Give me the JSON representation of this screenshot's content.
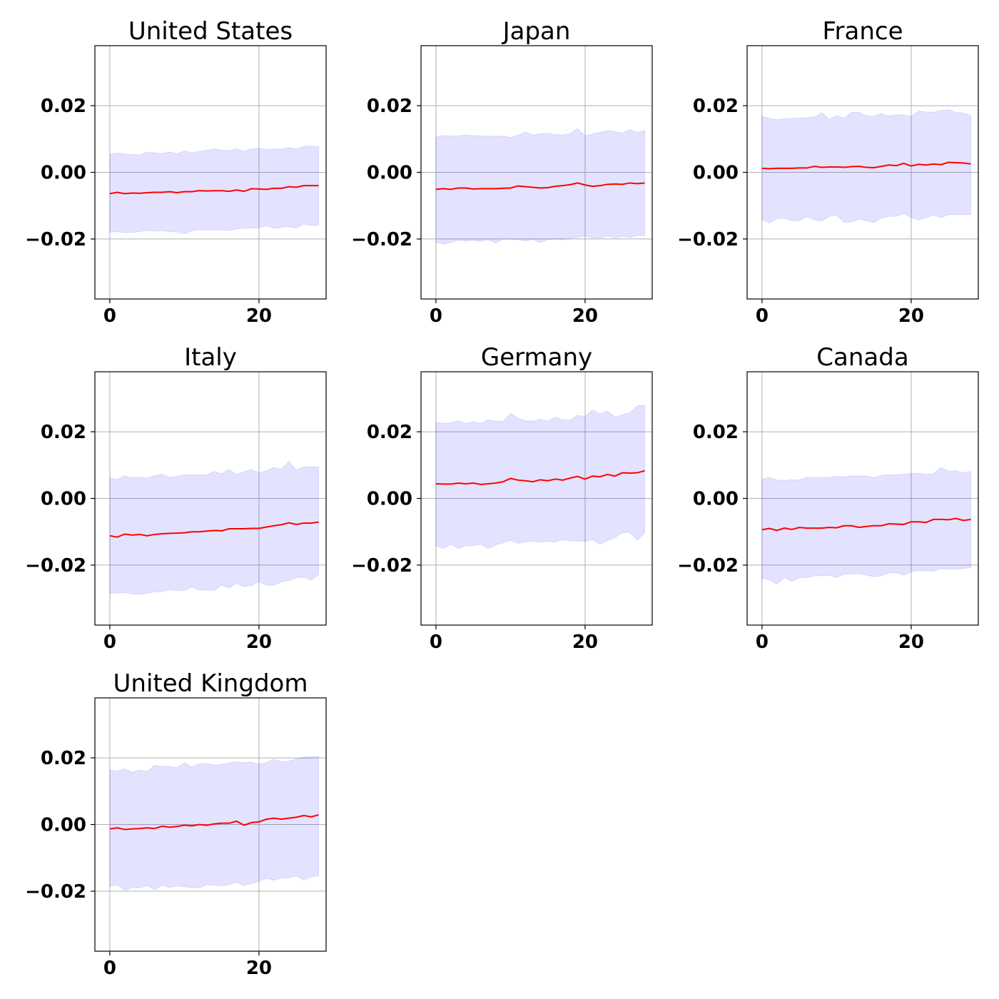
{
  "colors": {
    "mean_line": "#ff0000",
    "band_fill": "#0000ff",
    "band_fill_opacity": 0.11,
    "grid": "#b0b0b0",
    "axes": "#000000"
  },
  "chart_data": [
    {
      "type": "line",
      "title": "United States",
      "xlabel": "",
      "ylabel": "",
      "xlim": [
        -2.0,
        29.0
      ],
      "ylim": [
        -0.038,
        0.038
      ],
      "x_ticks": [
        0,
        20
      ],
      "x_tick_labels": [
        "0",
        "20"
      ],
      "y_ticks": [
        0.02,
        0.0,
        -0.02
      ],
      "y_tick_labels": [
        "0.02",
        "0.00",
        "−0.02"
      ],
      "grid": true,
      "x": [
        0,
        1,
        2,
        3,
        4,
        5,
        6,
        7,
        8,
        9,
        10,
        11,
        12,
        13,
        14,
        15,
        16,
        17,
        18,
        19,
        20,
        21,
        22,
        23,
        24,
        25,
        26,
        27,
        28
      ],
      "series": [
        {
          "values": [
            -0.0064,
            -0.006,
            -0.0064,
            -0.0062,
            -0.0063,
            -0.0061,
            -0.006,
            -0.006,
            -0.0058,
            -0.0061,
            -0.0058,
            -0.0058,
            -0.0055,
            -0.0056,
            -0.0055,
            -0.0055,
            -0.0057,
            -0.0053,
            -0.0057,
            -0.0049,
            -0.005,
            -0.0051,
            -0.0048,
            -0.0048,
            -0.0043,
            -0.0045,
            -0.004,
            -0.004,
            -0.004
          ],
          "lower": [
            -0.018,
            -0.0178,
            -0.0181,
            -0.018,
            -0.0178,
            -0.0174,
            -0.0176,
            -0.0175,
            -0.0178,
            -0.0179,
            -0.0184,
            -0.0175,
            -0.0172,
            -0.0174,
            -0.0173,
            -0.0172,
            -0.0175,
            -0.017,
            -0.0168,
            -0.0167,
            -0.0166,
            -0.016,
            -0.0168,
            -0.0165,
            -0.0163,
            -0.0167,
            -0.0155,
            -0.016,
            -0.0158
          ],
          "upper": [
            0.0054,
            0.0058,
            0.0055,
            0.0054,
            0.0052,
            0.006,
            0.0059,
            0.0056,
            0.0061,
            0.0056,
            0.0064,
            0.0059,
            0.0063,
            0.0066,
            0.007,
            0.0066,
            0.0065,
            0.007,
            0.0063,
            0.0071,
            0.0072,
            0.0068,
            0.0071,
            0.0069,
            0.0074,
            0.007,
            0.0077,
            0.0079,
            0.0077
          ]
        }
      ]
    },
    {
      "type": "line",
      "title": "Japan",
      "xlabel": "",
      "ylabel": "",
      "xlim": [
        -2.0,
        29.0
      ],
      "ylim": [
        -0.038,
        0.038
      ],
      "x_ticks": [
        0,
        20
      ],
      "x_tick_labels": [
        "0",
        "20"
      ],
      "y_ticks": [
        0.02,
        0.0,
        -0.02
      ],
      "y_tick_labels": [
        "0.02",
        "0.00",
        "−0.02"
      ],
      "grid": true,
      "x": [
        0,
        1,
        2,
        3,
        4,
        5,
        6,
        7,
        8,
        9,
        10,
        11,
        12,
        13,
        14,
        15,
        16,
        17,
        18,
        19,
        20,
        21,
        22,
        23,
        24,
        25,
        26,
        27,
        28
      ],
      "series": [
        {
          "values": [
            -0.0051,
            -0.0049,
            -0.0051,
            -0.0047,
            -0.0047,
            -0.005,
            -0.0049,
            -0.0049,
            -0.0049,
            -0.0048,
            -0.0047,
            -0.0041,
            -0.0043,
            -0.0045,
            -0.0047,
            -0.0046,
            -0.0042,
            -0.004,
            -0.0037,
            -0.0032,
            -0.0038,
            -0.0042,
            -0.004,
            -0.0036,
            -0.0035,
            -0.0036,
            -0.0032,
            -0.0034,
            -0.0032
          ],
          "lower": [
            -0.021,
            -0.0215,
            -0.0211,
            -0.0203,
            -0.0206,
            -0.0204,
            -0.0207,
            -0.0202,
            -0.0212,
            -0.02,
            -0.0201,
            -0.0202,
            -0.0206,
            -0.0201,
            -0.0211,
            -0.0202,
            -0.02,
            -0.0202,
            -0.0198,
            -0.0195,
            -0.0191,
            -0.0197,
            -0.0197,
            -0.0191,
            -0.0197,
            -0.0192,
            -0.0196,
            -0.0189,
            -0.019
          ],
          "upper": [
            0.0105,
            0.011,
            0.0109,
            0.0109,
            0.0112,
            0.011,
            0.0109,
            0.0109,
            0.0108,
            0.0109,
            0.0105,
            0.0111,
            0.0121,
            0.0112,
            0.0115,
            0.0117,
            0.0113,
            0.0112,
            0.0116,
            0.0131,
            0.0109,
            0.0115,
            0.012,
            0.0125,
            0.0122,
            0.0118,
            0.0128,
            0.012,
            0.0126
          ]
        }
      ]
    },
    {
      "type": "line",
      "title": "France",
      "xlabel": "",
      "ylabel": "",
      "xlim": [
        -2.0,
        29.0
      ],
      "ylim": [
        -0.038,
        0.038
      ],
      "x_ticks": [
        0,
        20
      ],
      "x_tick_labels": [
        "0",
        "20"
      ],
      "y_ticks": [
        0.02,
        0.0,
        -0.02
      ],
      "y_tick_labels": [
        "0.02",
        "0.00",
        "−0.02"
      ],
      "grid": true,
      "x": [
        0,
        1,
        2,
        3,
        4,
        5,
        6,
        7,
        8,
        9,
        10,
        11,
        12,
        13,
        14,
        15,
        16,
        17,
        18,
        19,
        20,
        21,
        22,
        23,
        24,
        25,
        26,
        27,
        28
      ],
      "series": [
        {
          "values": [
            0.0012,
            0.0011,
            0.0012,
            0.0012,
            0.0012,
            0.0013,
            0.0013,
            0.0018,
            0.0015,
            0.0016,
            0.0016,
            0.0015,
            0.0017,
            0.0018,
            0.0015,
            0.0014,
            0.0018,
            0.0022,
            0.002,
            0.0027,
            0.0019,
            0.0024,
            0.0022,
            0.0025,
            0.0023,
            0.003,
            0.0029,
            0.0028,
            0.0025
          ],
          "lower": [
            -0.0142,
            -0.0152,
            -0.0139,
            -0.0137,
            -0.0145,
            -0.0145,
            -0.0133,
            -0.0142,
            -0.0146,
            -0.0132,
            -0.0128,
            -0.015,
            -0.0149,
            -0.014,
            -0.0145,
            -0.0151,
            -0.0137,
            -0.0132,
            -0.0132,
            -0.0124,
            -0.0136,
            -0.0143,
            -0.0136,
            -0.0128,
            -0.0136,
            -0.0127,
            -0.0127,
            -0.0127,
            -0.0126
          ],
          "upper": [
            0.0168,
            0.0162,
            0.0158,
            0.016,
            0.0162,
            0.0163,
            0.0164,
            0.0166,
            0.0179,
            0.0159,
            0.017,
            0.0162,
            0.018,
            0.018,
            0.0169,
            0.0168,
            0.0177,
            0.0169,
            0.0173,
            0.0172,
            0.0167,
            0.0184,
            0.0181,
            0.018,
            0.0186,
            0.0187,
            0.018,
            0.0178,
            0.017
          ]
        }
      ]
    },
    {
      "type": "line",
      "title": "Italy",
      "xlabel": "",
      "ylabel": "",
      "xlim": [
        -2.0,
        29.0
      ],
      "ylim": [
        -0.038,
        0.038
      ],
      "x_ticks": [
        0,
        20
      ],
      "x_tick_labels": [
        "0",
        "20"
      ],
      "y_ticks": [
        0.02,
        0.0,
        -0.02
      ],
      "y_tick_labels": [
        "0.02",
        "0.00",
        "−0.02"
      ],
      "grid": true,
      "x": [
        0,
        1,
        2,
        3,
        4,
        5,
        6,
        7,
        8,
        9,
        10,
        11,
        12,
        13,
        14,
        15,
        16,
        17,
        18,
        19,
        20,
        21,
        22,
        23,
        24,
        25,
        26,
        27,
        28
      ],
      "series": [
        {
          "values": [
            -0.0112,
            -0.0116,
            -0.0107,
            -0.011,
            -0.0108,
            -0.0112,
            -0.0108,
            -0.0106,
            -0.0105,
            -0.0104,
            -0.0103,
            -0.01,
            -0.01,
            -0.0098,
            -0.0096,
            -0.0097,
            -0.0091,
            -0.0091,
            -0.0091,
            -0.009,
            -0.009,
            -0.0086,
            -0.0082,
            -0.0079,
            -0.0073,
            -0.0078,
            -0.0074,
            -0.0074,
            -0.0071
          ],
          "lower": [
            -0.0285,
            -0.0284,
            -0.0282,
            -0.0287,
            -0.0288,
            -0.0285,
            -0.028,
            -0.0279,
            -0.0273,
            -0.0276,
            -0.0276,
            -0.0266,
            -0.0275,
            -0.0275,
            -0.0276,
            -0.026,
            -0.0269,
            -0.0255,
            -0.0264,
            -0.0261,
            -0.025,
            -0.026,
            -0.026,
            -0.025,
            -0.0246,
            -0.0238,
            -0.0236,
            -0.0245,
            -0.0228
          ],
          "upper": [
            0.0062,
            0.0057,
            0.0067,
            0.0062,
            0.0064,
            0.0061,
            0.0068,
            0.0073,
            0.0063,
            0.0066,
            0.0071,
            0.0071,
            0.007,
            0.0071,
            0.0081,
            0.0074,
            0.0087,
            0.0072,
            0.008,
            0.0087,
            0.0077,
            0.0083,
            0.0093,
            0.0087,
            0.0111,
            0.0085,
            0.0095,
            0.0095,
            0.0094
          ]
        }
      ]
    },
    {
      "type": "line",
      "title": "Germany",
      "xlabel": "",
      "ylabel": "",
      "xlim": [
        -2.0,
        29.0
      ],
      "ylim": [
        -0.038,
        0.038
      ],
      "x_ticks": [
        0,
        20
      ],
      "x_tick_labels": [
        "0",
        "20"
      ],
      "y_ticks": [
        0.02,
        0.0,
        -0.02
      ],
      "y_tick_labels": [
        "0.02",
        "0.00",
        "−0.02"
      ],
      "grid": true,
      "x": [
        0,
        1,
        2,
        3,
        4,
        5,
        6,
        7,
        8,
        9,
        10,
        11,
        12,
        13,
        14,
        15,
        16,
        17,
        18,
        19,
        20,
        21,
        22,
        23,
        24,
        25,
        26,
        27,
        28
      ],
      "series": [
        {
          "values": [
            0.0044,
            0.0043,
            0.0043,
            0.0046,
            0.0044,
            0.0046,
            0.0042,
            0.0044,
            0.0046,
            0.005,
            0.006,
            0.0055,
            0.0053,
            0.005,
            0.0056,
            0.0053,
            0.0058,
            0.0055,
            0.0061,
            0.0066,
            0.0058,
            0.0067,
            0.0065,
            0.0072,
            0.0067,
            0.0077,
            0.0076,
            0.0077,
            0.0083
          ],
          "lower": [
            -0.0142,
            -0.015,
            -0.0137,
            -0.015,
            -0.0142,
            -0.0142,
            -0.0137,
            -0.015,
            -0.014,
            -0.0133,
            -0.0125,
            -0.0135,
            -0.013,
            -0.0128,
            -0.0131,
            -0.0129,
            -0.0131,
            -0.0124,
            -0.0127,
            -0.0128,
            -0.0129,
            -0.0123,
            -0.0138,
            -0.0126,
            -0.0117,
            -0.0103,
            -0.0102,
            -0.0125,
            -0.0103
          ],
          "upper": [
            0.0228,
            0.0225,
            0.0226,
            0.0233,
            0.0224,
            0.0231,
            0.0225,
            0.0236,
            0.0232,
            0.0231,
            0.0255,
            0.0241,
            0.0233,
            0.0232,
            0.0238,
            0.0232,
            0.0244,
            0.0236,
            0.0236,
            0.0249,
            0.0246,
            0.0265,
            0.0254,
            0.0262,
            0.0244,
            0.0251,
            0.0257,
            0.0278,
            0.0279
          ]
        }
      ]
    },
    {
      "type": "line",
      "title": "Canada",
      "xlabel": "",
      "ylabel": "",
      "xlim": [
        -2.0,
        29.0
      ],
      "ylim": [
        -0.038,
        0.038
      ],
      "x_ticks": [
        0,
        20
      ],
      "x_tick_labels": [
        "0",
        "20"
      ],
      "y_ticks": [
        0.02,
        0.0,
        -0.02
      ],
      "y_tick_labels": [
        "0.02",
        "0.00",
        "−0.02"
      ],
      "grid": true,
      "x": [
        0,
        1,
        2,
        3,
        4,
        5,
        6,
        7,
        8,
        9,
        10,
        11,
        12,
        13,
        14,
        15,
        16,
        17,
        18,
        19,
        20,
        21,
        22,
        23,
        24,
        25,
        26,
        27,
        28
      ],
      "series": [
        {
          "values": [
            -0.0094,
            -0.009,
            -0.0096,
            -0.0089,
            -0.0093,
            -0.0087,
            -0.0089,
            -0.0089,
            -0.0089,
            -0.0087,
            -0.0088,
            -0.0082,
            -0.0082,
            -0.0087,
            -0.0084,
            -0.0082,
            -0.0082,
            -0.0076,
            -0.0077,
            -0.0078,
            -0.007,
            -0.007,
            -0.0072,
            -0.0063,
            -0.0063,
            -0.0064,
            -0.006,
            -0.0066,
            -0.0063
          ],
          "lower": [
            -0.024,
            -0.0244,
            -0.0257,
            -0.0237,
            -0.0249,
            -0.0238,
            -0.0237,
            -0.0232,
            -0.0232,
            -0.0231,
            -0.0237,
            -0.0227,
            -0.0226,
            -0.0226,
            -0.023,
            -0.0235,
            -0.0232,
            -0.0223,
            -0.0223,
            -0.023,
            -0.022,
            -0.0217,
            -0.0217,
            -0.0219,
            -0.021,
            -0.0213,
            -0.0212,
            -0.021,
            -0.0207
          ],
          "upper": [
            0.0057,
            0.0063,
            0.0055,
            0.0054,
            0.0056,
            0.0055,
            0.0064,
            0.0062,
            0.0063,
            0.0063,
            0.0067,
            0.0064,
            0.0068,
            0.0067,
            0.0068,
            0.0062,
            0.0069,
            0.0071,
            0.0071,
            0.0073,
            0.0075,
            0.0075,
            0.0072,
            0.0074,
            0.0093,
            0.0081,
            0.0083,
            0.0077,
            0.0081
          ]
        }
      ]
    },
    {
      "type": "line",
      "title": "United Kingdom",
      "xlabel": "",
      "ylabel": "",
      "xlim": [
        -2.0,
        29.0
      ],
      "ylim": [
        -0.038,
        0.038
      ],
      "x_ticks": [
        0,
        20
      ],
      "x_tick_labels": [
        "0",
        "20"
      ],
      "y_ticks": [
        0.02,
        0.0,
        -0.02
      ],
      "y_tick_labels": [
        "0.02",
        "0.00",
        "−0.02"
      ],
      "grid": true,
      "x": [
        0,
        1,
        2,
        3,
        4,
        5,
        6,
        7,
        8,
        9,
        10,
        11,
        12,
        13,
        14,
        15,
        16,
        17,
        18,
        19,
        20,
        21,
        22,
        23,
        24,
        25,
        26,
        27,
        28
      ],
      "series": [
        {
          "values": [
            -0.0013,
            -0.001,
            -0.0015,
            -0.0013,
            -0.0012,
            -0.001,
            -0.0012,
            -0.0005,
            -0.0008,
            -0.0006,
            -0.0002,
            -0.0004,
            0.0,
            -0.0002,
            0.0002,
            0.0004,
            0.0004,
            0.001,
            -0.0002,
            0.0006,
            0.0008,
            0.0016,
            0.0019,
            0.0016,
            0.0019,
            0.0022,
            0.0027,
            0.0023,
            0.0029
          ],
          "lower": [
            -0.0185,
            -0.0181,
            -0.0197,
            -0.0189,
            -0.019,
            -0.0183,
            -0.0195,
            -0.0182,
            -0.0189,
            -0.0184,
            -0.0187,
            -0.0189,
            -0.019,
            -0.018,
            -0.0182,
            -0.0184,
            -0.018,
            -0.0173,
            -0.0183,
            -0.0177,
            -0.017,
            -0.0162,
            -0.0167,
            -0.016,
            -0.016,
            -0.0154,
            -0.0166,
            -0.0158,
            -0.0153
          ],
          "upper": [
            0.0164,
            0.016,
            0.0167,
            0.0157,
            0.0163,
            0.0159,
            0.0177,
            0.0175,
            0.0174,
            0.0171,
            0.0185,
            0.0172,
            0.0182,
            0.0183,
            0.0178,
            0.018,
            0.0185,
            0.0188,
            0.0185,
            0.0187,
            0.0181,
            0.0186,
            0.0196,
            0.0188,
            0.019,
            0.0197,
            0.0202,
            0.0203,
            0.0204
          ]
        }
      ]
    }
  ]
}
